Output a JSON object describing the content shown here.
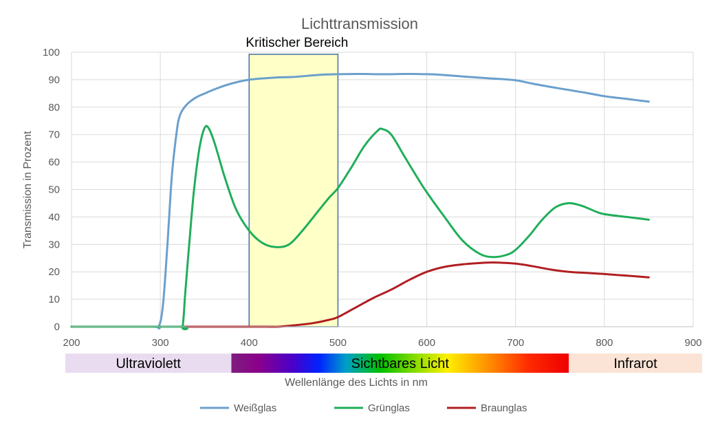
{
  "chart_data": {
    "type": "line",
    "title": "Lichttransmission",
    "xlabel": "Wellenlänge des Lichts in nm",
    "ylabel": "Transmission in Prozent",
    "xlim": [
      200,
      900
    ],
    "ylim": [
      0,
      100
    ],
    "xticks": [
      200,
      300,
      400,
      500,
      600,
      700,
      800,
      900
    ],
    "yticks": [
      0,
      10,
      20,
      30,
      40,
      50,
      60,
      70,
      80,
      90,
      100
    ],
    "grid": true,
    "legend_position": "bottom",
    "highlight": {
      "label": "Kritischer Bereich",
      "x_range": [
        400,
        500
      ],
      "color": "#FFFFC8",
      "border": "#41719C"
    },
    "spectrum_bands": [
      {
        "label": "Ultraviolett",
        "x_range": [
          193,
          380
        ],
        "color": "#EADCF0"
      },
      {
        "label": "Sichtbares Licht",
        "x_range": [
          380,
          760
        ]
      },
      {
        "label": "Infrarot",
        "x_range": [
          760,
          910
        ],
        "color": "#FBE3D5"
      }
    ],
    "series": [
      {
        "name": "Weißglas",
        "color": "#6A9FCD",
        "points": [
          [
            200,
            0
          ],
          [
            290,
            0
          ],
          [
            298,
            0
          ],
          [
            303,
            8
          ],
          [
            308,
            30
          ],
          [
            313,
            55
          ],
          [
            318,
            70
          ],
          [
            322,
            77
          ],
          [
            330,
            81
          ],
          [
            340,
            83.5
          ],
          [
            350,
            85
          ],
          [
            365,
            87
          ],
          [
            380,
            88.6
          ],
          [
            400,
            90
          ],
          [
            430,
            90.8
          ],
          [
            450,
            91
          ],
          [
            480,
            91.8
          ],
          [
            500,
            92
          ],
          [
            525,
            92.1
          ],
          [
            550,
            92
          ],
          [
            580,
            92.1
          ],
          [
            610,
            91.9
          ],
          [
            640,
            91.2
          ],
          [
            670,
            90.5
          ],
          [
            700,
            89.8
          ],
          [
            720,
            88.5
          ],
          [
            750,
            86.8
          ],
          [
            780,
            85.2
          ],
          [
            800,
            84
          ],
          [
            825,
            83
          ],
          [
            850,
            82
          ]
        ]
      },
      {
        "name": "Grünglas",
        "color": "#1FAE5A",
        "points": [
          [
            200,
            0
          ],
          [
            320,
            0
          ],
          [
            325,
            0
          ],
          [
            328,
            12
          ],
          [
            333,
            32
          ],
          [
            338,
            50
          ],
          [
            344,
            65
          ],
          [
            350,
            72.5
          ],
          [
            355,
            72
          ],
          [
            362,
            66
          ],
          [
            372,
            55
          ],
          [
            385,
            43
          ],
          [
            400,
            35
          ],
          [
            415,
            30.5
          ],
          [
            430,
            29
          ],
          [
            445,
            30
          ],
          [
            460,
            35
          ],
          [
            475,
            41
          ],
          [
            490,
            47
          ],
          [
            500,
            50.5
          ],
          [
            515,
            58
          ],
          [
            530,
            66
          ],
          [
            545,
            71.5
          ],
          [
            550,
            72
          ],
          [
            560,
            70
          ],
          [
            575,
            62
          ],
          [
            590,
            54
          ],
          [
            600,
            49
          ],
          [
            620,
            40
          ],
          [
            640,
            31.5
          ],
          [
            660,
            26.5
          ],
          [
            675,
            25.4
          ],
          [
            690,
            26.2
          ],
          [
            700,
            28
          ],
          [
            715,
            33
          ],
          [
            730,
            39
          ],
          [
            745,
            43.5
          ],
          [
            760,
            45
          ],
          [
            775,
            44
          ],
          [
            790,
            42
          ],
          [
            800,
            41
          ],
          [
            825,
            40
          ],
          [
            850,
            39
          ]
        ]
      },
      {
        "name": "Braunglas",
        "color": "#B01E22",
        "points": [
          [
            200,
            0
          ],
          [
            410,
            0
          ],
          [
            420,
            0
          ],
          [
            432,
            0
          ],
          [
            450,
            0.5
          ],
          [
            470,
            1.2
          ],
          [
            490,
            2.5
          ],
          [
            500,
            3.5
          ],
          [
            520,
            7
          ],
          [
            540,
            10.5
          ],
          [
            560,
            13.5
          ],
          [
            580,
            17
          ],
          [
            600,
            20
          ],
          [
            620,
            21.8
          ],
          [
            640,
            22.7
          ],
          [
            660,
            23.2
          ],
          [
            675,
            23.4
          ],
          [
            700,
            23
          ],
          [
            720,
            22
          ],
          [
            740,
            20.8
          ],
          [
            760,
            20
          ],
          [
            780,
            19.6
          ],
          [
            800,
            19.2
          ],
          [
            825,
            18.6
          ],
          [
            850,
            18
          ]
        ]
      }
    ]
  }
}
